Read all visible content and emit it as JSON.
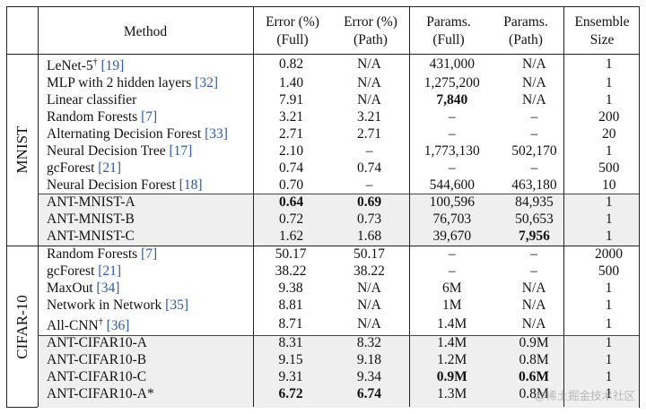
{
  "header": {
    "method": "Method",
    "error_full": [
      "Error (%)",
      "(Full)"
    ],
    "error_path": [
      "Error (%)",
      "(Path)"
    ],
    "params_full": [
      "Params.",
      "(Full)"
    ],
    "params_path": [
      "Params.",
      "(Path)"
    ],
    "ensemble": [
      "Ensemble",
      "Size"
    ]
  },
  "sections": [
    {
      "name": "MNIST",
      "rows": [
        {
          "method": "LeNet-5",
          "sup": "†",
          "ref": "[19]",
          "err_full": "0.82",
          "err_path": "N/A",
          "params_full": "431,000",
          "params_path": "N/A",
          "ensemble": "1"
        },
        {
          "method": "MLP with 2 hidden layers",
          "sup": "",
          "ref": "[32]",
          "err_full": "1.40",
          "err_path": "N/A",
          "params_full": "1,275,200",
          "params_path": "N/A",
          "ensemble": "1"
        },
        {
          "method": "Linear classifier",
          "sup": "",
          "ref": "",
          "err_full": "7.91",
          "err_path": "N/A",
          "params_full": "7,840",
          "params_path": "N/A",
          "ensemble": "1",
          "bold": [
            "params_full"
          ]
        },
        {
          "method": "Random Forests",
          "sup": "",
          "ref": "[7]",
          "err_full": "3.21",
          "err_path": "3.21",
          "params_full": "–",
          "params_path": "–",
          "ensemble": "200"
        },
        {
          "method": "Alternating Decision Forest",
          "sup": "",
          "ref": "[33]",
          "err_full": "2.71",
          "err_path": "2.71",
          "params_full": "–",
          "params_path": "–",
          "ensemble": "20"
        },
        {
          "method": "Neural Decision Tree",
          "sup": "",
          "ref": "[17]",
          "err_full": "2.10",
          "err_path": "–",
          "params_full": "1,773,130",
          "params_path": "502,170",
          "ensemble": "1"
        },
        {
          "method": "gcForest",
          "sup": "",
          "ref": "[21]",
          "err_full": "0.74",
          "err_path": "0.74",
          "params_full": "–",
          "params_path": "–",
          "ensemble": "500"
        },
        {
          "method": "Neural Decision Forest",
          "sup": "",
          "ref": "[18]",
          "err_full": "0.70",
          "err_path": "–",
          "params_full": "544,600",
          "params_path": "463,180",
          "ensemble": "10"
        },
        {
          "method": "ANT-MNIST-A",
          "sup": "",
          "ref": "",
          "err_full": "0.64",
          "err_path": "0.69",
          "params_full": "100,596",
          "params_path": "84,935",
          "ensemble": "1",
          "bold": [
            "err_full",
            "err_path"
          ]
        },
        {
          "method": "ANT-MNIST-B",
          "sup": "",
          "ref": "",
          "err_full": "0.72",
          "err_path": "0.73",
          "params_full": "76,703",
          "params_path": "50,653",
          "ensemble": "1"
        },
        {
          "method": "ANT-MNIST-C",
          "sup": "",
          "ref": "",
          "err_full": "1.62",
          "err_path": "1.68",
          "params_full": "39,670",
          "params_path": "7,956",
          "ensemble": "1",
          "bold": [
            "params_path"
          ]
        }
      ]
    },
    {
      "name": "CIFAR-10",
      "rows": [
        {
          "method": "Random Forests",
          "sup": "",
          "ref": "[7]",
          "err_full": "50.17",
          "err_path": "50.17",
          "params_full": "–",
          "params_path": "–",
          "ensemble": "2000"
        },
        {
          "method": "gcForest",
          "sup": "",
          "ref": "[21]",
          "err_full": "38.22",
          "err_path": "38.22",
          "params_full": "–",
          "params_path": "–",
          "ensemble": "500"
        },
        {
          "method": "MaxOut",
          "sup": "",
          "ref": "[34]",
          "err_full": "9.38",
          "err_path": "N/A",
          "params_full": "6M",
          "params_path": "N/A",
          "ensemble": "1"
        },
        {
          "method": "Network in Network",
          "sup": "",
          "ref": "[35]",
          "err_full": "8.81",
          "err_path": "N/A",
          "params_full": "1M",
          "params_path": "N/A",
          "ensemble": "1"
        },
        {
          "method": "All-CNN",
          "sup": "†",
          "ref": "[36]",
          "err_full": "8.71",
          "err_path": "N/A",
          "params_full": "1.4M",
          "params_path": "N/A",
          "ensemble": "1"
        },
        {
          "method": "ANT-CIFAR10-A",
          "sup": "",
          "ref": "",
          "err_full": "8.31",
          "err_path": "8.32",
          "params_full": "1.4M",
          "params_path": "0.9M",
          "ensemble": "1"
        },
        {
          "method": "ANT-CIFAR10-B",
          "sup": "",
          "ref": "",
          "err_full": "9.15",
          "err_path": "9.18",
          "params_full": "1.2M",
          "params_path": "0.8M",
          "ensemble": "1"
        },
        {
          "method": "ANT-CIFAR10-C",
          "sup": "",
          "ref": "",
          "err_full": "9.31",
          "err_path": "9.34",
          "params_full": "0.9M",
          "params_path": "0.6M",
          "ensemble": "1",
          "bold": [
            "params_full",
            "params_path"
          ]
        },
        {
          "method": "ANT-CIFAR10-A*",
          "sup": "",
          "ref": "",
          "err_full": "6.72",
          "err_path": "6.74",
          "params_full": "1.3M",
          "params_path": "0.8M",
          "ensemble": "1",
          "bold": [
            "err_full",
            "err_path"
          ]
        }
      ]
    }
  ],
  "watermark": "@稀土掘金技术社区"
}
